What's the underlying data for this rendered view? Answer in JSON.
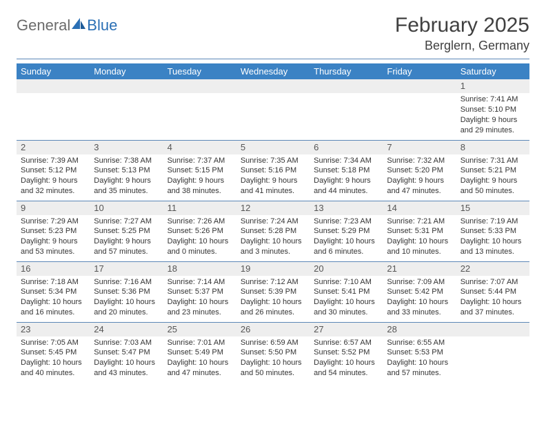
{
  "logo": {
    "word1": "General",
    "word2": "Blue"
  },
  "title": "February 2025",
  "location": "Berglern, Germany",
  "colors": {
    "header_bg": "#3b82c4",
    "rule": "#5b86b6",
    "daybar": "#eeeeee",
    "logo_gray": "#6b6b6b",
    "logo_blue": "#2a6fb5"
  },
  "fonts": {
    "title_size": 30,
    "location_size": 18,
    "dow_size": 13,
    "daynum_size": 13,
    "detail_size": 11
  },
  "days_of_week": [
    "Sunday",
    "Monday",
    "Tuesday",
    "Wednesday",
    "Thursday",
    "Friday",
    "Saturday"
  ],
  "weeks": [
    [
      null,
      null,
      null,
      null,
      null,
      null,
      {
        "n": "1",
        "sunrise": "Sunrise: 7:41 AM",
        "sunset": "Sunset: 5:10 PM",
        "daylight": "Daylight: 9 hours and 29 minutes."
      }
    ],
    [
      {
        "n": "2",
        "sunrise": "Sunrise: 7:39 AM",
        "sunset": "Sunset: 5:12 PM",
        "daylight": "Daylight: 9 hours and 32 minutes."
      },
      {
        "n": "3",
        "sunrise": "Sunrise: 7:38 AM",
        "sunset": "Sunset: 5:13 PM",
        "daylight": "Daylight: 9 hours and 35 minutes."
      },
      {
        "n": "4",
        "sunrise": "Sunrise: 7:37 AM",
        "sunset": "Sunset: 5:15 PM",
        "daylight": "Daylight: 9 hours and 38 minutes."
      },
      {
        "n": "5",
        "sunrise": "Sunrise: 7:35 AM",
        "sunset": "Sunset: 5:16 PM",
        "daylight": "Daylight: 9 hours and 41 minutes."
      },
      {
        "n": "6",
        "sunrise": "Sunrise: 7:34 AM",
        "sunset": "Sunset: 5:18 PM",
        "daylight": "Daylight: 9 hours and 44 minutes."
      },
      {
        "n": "7",
        "sunrise": "Sunrise: 7:32 AM",
        "sunset": "Sunset: 5:20 PM",
        "daylight": "Daylight: 9 hours and 47 minutes."
      },
      {
        "n": "8",
        "sunrise": "Sunrise: 7:31 AM",
        "sunset": "Sunset: 5:21 PM",
        "daylight": "Daylight: 9 hours and 50 minutes."
      }
    ],
    [
      {
        "n": "9",
        "sunrise": "Sunrise: 7:29 AM",
        "sunset": "Sunset: 5:23 PM",
        "daylight": "Daylight: 9 hours and 53 minutes."
      },
      {
        "n": "10",
        "sunrise": "Sunrise: 7:27 AM",
        "sunset": "Sunset: 5:25 PM",
        "daylight": "Daylight: 9 hours and 57 minutes."
      },
      {
        "n": "11",
        "sunrise": "Sunrise: 7:26 AM",
        "sunset": "Sunset: 5:26 PM",
        "daylight": "Daylight: 10 hours and 0 minutes."
      },
      {
        "n": "12",
        "sunrise": "Sunrise: 7:24 AM",
        "sunset": "Sunset: 5:28 PM",
        "daylight": "Daylight: 10 hours and 3 minutes."
      },
      {
        "n": "13",
        "sunrise": "Sunrise: 7:23 AM",
        "sunset": "Sunset: 5:29 PM",
        "daylight": "Daylight: 10 hours and 6 minutes."
      },
      {
        "n": "14",
        "sunrise": "Sunrise: 7:21 AM",
        "sunset": "Sunset: 5:31 PM",
        "daylight": "Daylight: 10 hours and 10 minutes."
      },
      {
        "n": "15",
        "sunrise": "Sunrise: 7:19 AM",
        "sunset": "Sunset: 5:33 PM",
        "daylight": "Daylight: 10 hours and 13 minutes."
      }
    ],
    [
      {
        "n": "16",
        "sunrise": "Sunrise: 7:18 AM",
        "sunset": "Sunset: 5:34 PM",
        "daylight": "Daylight: 10 hours and 16 minutes."
      },
      {
        "n": "17",
        "sunrise": "Sunrise: 7:16 AM",
        "sunset": "Sunset: 5:36 PM",
        "daylight": "Daylight: 10 hours and 20 minutes."
      },
      {
        "n": "18",
        "sunrise": "Sunrise: 7:14 AM",
        "sunset": "Sunset: 5:37 PM",
        "daylight": "Daylight: 10 hours and 23 minutes."
      },
      {
        "n": "19",
        "sunrise": "Sunrise: 7:12 AM",
        "sunset": "Sunset: 5:39 PM",
        "daylight": "Daylight: 10 hours and 26 minutes."
      },
      {
        "n": "20",
        "sunrise": "Sunrise: 7:10 AM",
        "sunset": "Sunset: 5:41 PM",
        "daylight": "Daylight: 10 hours and 30 minutes."
      },
      {
        "n": "21",
        "sunrise": "Sunrise: 7:09 AM",
        "sunset": "Sunset: 5:42 PM",
        "daylight": "Daylight: 10 hours and 33 minutes."
      },
      {
        "n": "22",
        "sunrise": "Sunrise: 7:07 AM",
        "sunset": "Sunset: 5:44 PM",
        "daylight": "Daylight: 10 hours and 37 minutes."
      }
    ],
    [
      {
        "n": "23",
        "sunrise": "Sunrise: 7:05 AM",
        "sunset": "Sunset: 5:45 PM",
        "daylight": "Daylight: 10 hours and 40 minutes."
      },
      {
        "n": "24",
        "sunrise": "Sunrise: 7:03 AM",
        "sunset": "Sunset: 5:47 PM",
        "daylight": "Daylight: 10 hours and 43 minutes."
      },
      {
        "n": "25",
        "sunrise": "Sunrise: 7:01 AM",
        "sunset": "Sunset: 5:49 PM",
        "daylight": "Daylight: 10 hours and 47 minutes."
      },
      {
        "n": "26",
        "sunrise": "Sunrise: 6:59 AM",
        "sunset": "Sunset: 5:50 PM",
        "daylight": "Daylight: 10 hours and 50 minutes."
      },
      {
        "n": "27",
        "sunrise": "Sunrise: 6:57 AM",
        "sunset": "Sunset: 5:52 PM",
        "daylight": "Daylight: 10 hours and 54 minutes."
      },
      {
        "n": "28",
        "sunrise": "Sunrise: 6:55 AM",
        "sunset": "Sunset: 5:53 PM",
        "daylight": "Daylight: 10 hours and 57 minutes."
      },
      null
    ]
  ]
}
